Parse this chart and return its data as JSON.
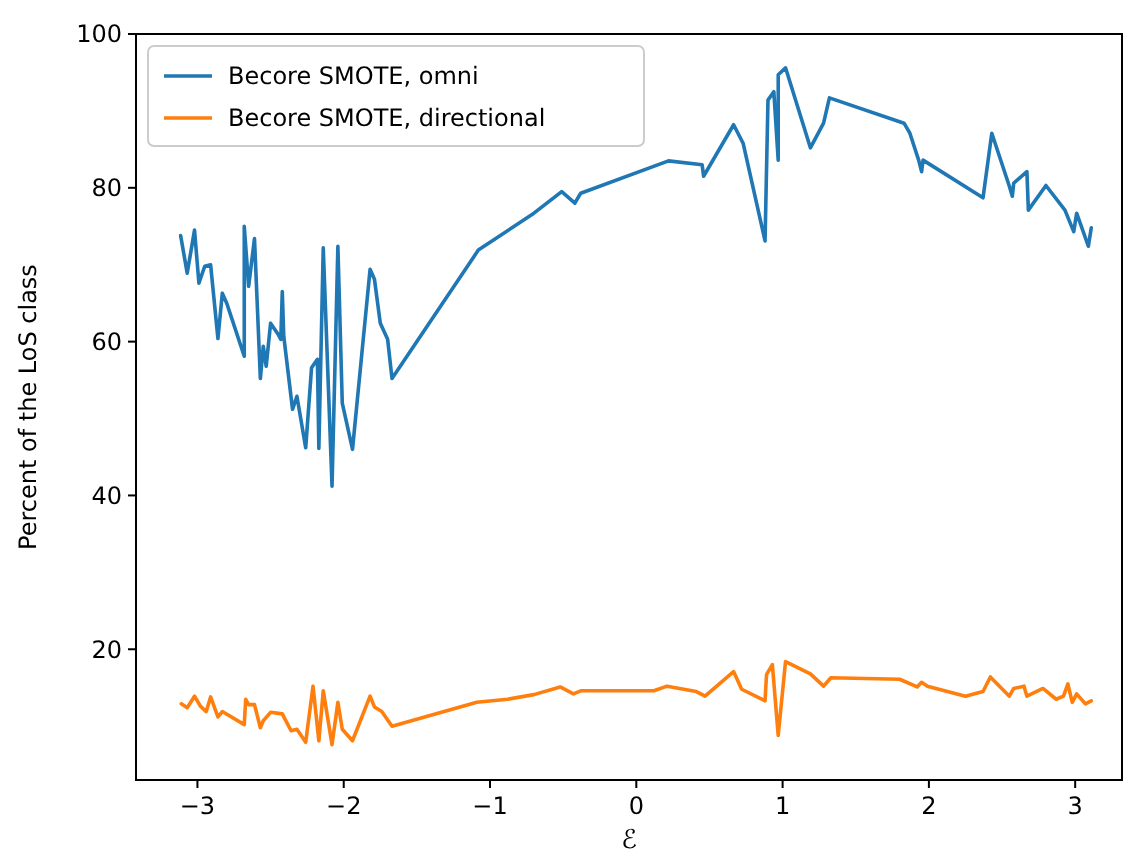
{
  "chart_data": {
    "type": "line",
    "xlabel": "ℰ",
    "ylabel": "Percent of the LoS class",
    "xlim": [
      -3.42,
      3.32
    ],
    "ylim": [
      3,
      100
    ],
    "xticks": [
      {
        "value": -3,
        "label": "−3"
      },
      {
        "value": -2,
        "label": "−2"
      },
      {
        "value": -1,
        "label": "−1"
      },
      0,
      1,
      2,
      3
    ],
    "yticks": [
      20,
      40,
      60,
      80,
      100
    ],
    "grid": false,
    "legend": "top left",
    "marker": "none",
    "line_style": "solid",
    "series": [
      {
        "name": "Becore SMOTE, omni",
        "color": "#1f77b4",
        "x": [
          -3.115,
          -3.07,
          -3.02,
          -2.99,
          -2.95,
          -2.91,
          -2.86,
          -2.83,
          -2.8,
          -2.68,
          -2.68,
          -2.65,
          -2.61,
          -2.57,
          -2.55,
          -2.53,
          -2.5,
          -2.45,
          -2.43,
          -2.42,
          -2.41,
          -2.35,
          -2.32,
          -2.26,
          -2.22,
          -2.18,
          -2.17,
          -2.14,
          -2.08,
          -2.04,
          -2.01,
          -1.94,
          -1.82,
          -1.79,
          -1.75,
          -1.7,
          -1.67,
          -1.08,
          -0.7,
          -0.51,
          -0.42,
          -0.38,
          0.22,
          0.45,
          0.46,
          0.665,
          0.73,
          0.88,
          0.9,
          0.94,
          0.97,
          0.97,
          1.02,
          1.19,
          1.28,
          1.32,
          1.83,
          1.87,
          1.93,
          1.95,
          1.96,
          2.37,
          2.43,
          2.55,
          2.57,
          2.58,
          2.67,
          2.68,
          2.8,
          2.93,
          2.99,
          3.01,
          3.09,
          3.11
        ],
        "values": [
          73.8,
          68.9,
          74.5,
          67.6,
          69.8,
          70,
          60.4,
          66.3,
          65,
          58.1,
          75,
          67.2,
          73.4,
          55.2,
          59.4,
          56.8,
          62.4,
          61,
          60.3,
          66.5,
          60.7,
          51.2,
          52.9,
          46.2,
          56.6,
          57.7,
          46.1,
          72.2,
          41.2,
          72.4,
          52,
          46,
          69.4,
          68.1,
          62.4,
          60.3,
          55.2,
          71.9,
          76.7,
          79.5,
          78,
          79.3,
          83.5,
          83,
          81.5,
          88.2,
          85.8,
          73.1,
          91.4,
          92.5,
          83.6,
          94.7,
          95.6,
          85.2,
          88.4,
          91.7,
          88.4,
          87.1,
          83.6,
          82.1,
          83.6,
          78.7,
          87.1,
          80.2,
          78.9,
          80.6,
          82.1,
          77.1,
          80.3,
          77.1,
          74.3,
          76.7,
          72.4,
          74.8
        ]
      },
      {
        "name": "Becore SMOTE, directional",
        "color": "#ff7f0e",
        "x": [
          -3.11,
          -3.07,
          -3.02,
          -2.98,
          -2.94,
          -2.91,
          -2.86,
          -2.83,
          -2.68,
          -2.67,
          -2.65,
          -2.61,
          -2.57,
          -2.55,
          -2.5,
          -2.42,
          -2.36,
          -2.32,
          -2.26,
          -2.21,
          -2.17,
          -2.14,
          -2.08,
          -2.04,
          -2.01,
          -1.94,
          -1.82,
          -1.79,
          -1.74,
          -1.67,
          -1.09,
          -0.88,
          -0.7,
          -0.52,
          -0.43,
          -0.38,
          0.12,
          0.21,
          0.41,
          0.47,
          0.665,
          0.72,
          0.88,
          0.89,
          0.93,
          0.97,
          1.02,
          1.19,
          1.28,
          1.33,
          1.8,
          1.92,
          1.95,
          1.99,
          2.25,
          2.37,
          2.42,
          2.55,
          2.58,
          2.65,
          2.67,
          2.78,
          2.87,
          2.92,
          2.95,
          2.98,
          3.01,
          3.07,
          3.11
        ],
        "values": [
          12.9,
          12.4,
          13.9,
          12.6,
          11.9,
          13.8,
          11.2,
          11.9,
          10.2,
          13.5,
          12.8,
          12.8,
          9.8,
          10.7,
          11.8,
          11.6,
          9.4,
          9.6,
          7.9,
          15.2,
          8.1,
          14.6,
          7.6,
          13.1,
          9.6,
          8.1,
          13.9,
          12.5,
          11.9,
          10,
          13.1,
          13.5,
          14.1,
          15.1,
          14.2,
          14.6,
          14.6,
          15.2,
          14.5,
          13.9,
          17.1,
          14.8,
          13.3,
          16.7,
          18,
          8.8,
          18.4,
          16.8,
          15.2,
          16.3,
          16.1,
          15.1,
          15.7,
          15.2,
          13.9,
          14.5,
          16.4,
          13.9,
          14.9,
          15.2,
          13.9,
          14.9,
          13.5,
          13.9,
          15.5,
          13.1,
          14.2,
          12.9,
          13.3
        ]
      }
    ]
  }
}
